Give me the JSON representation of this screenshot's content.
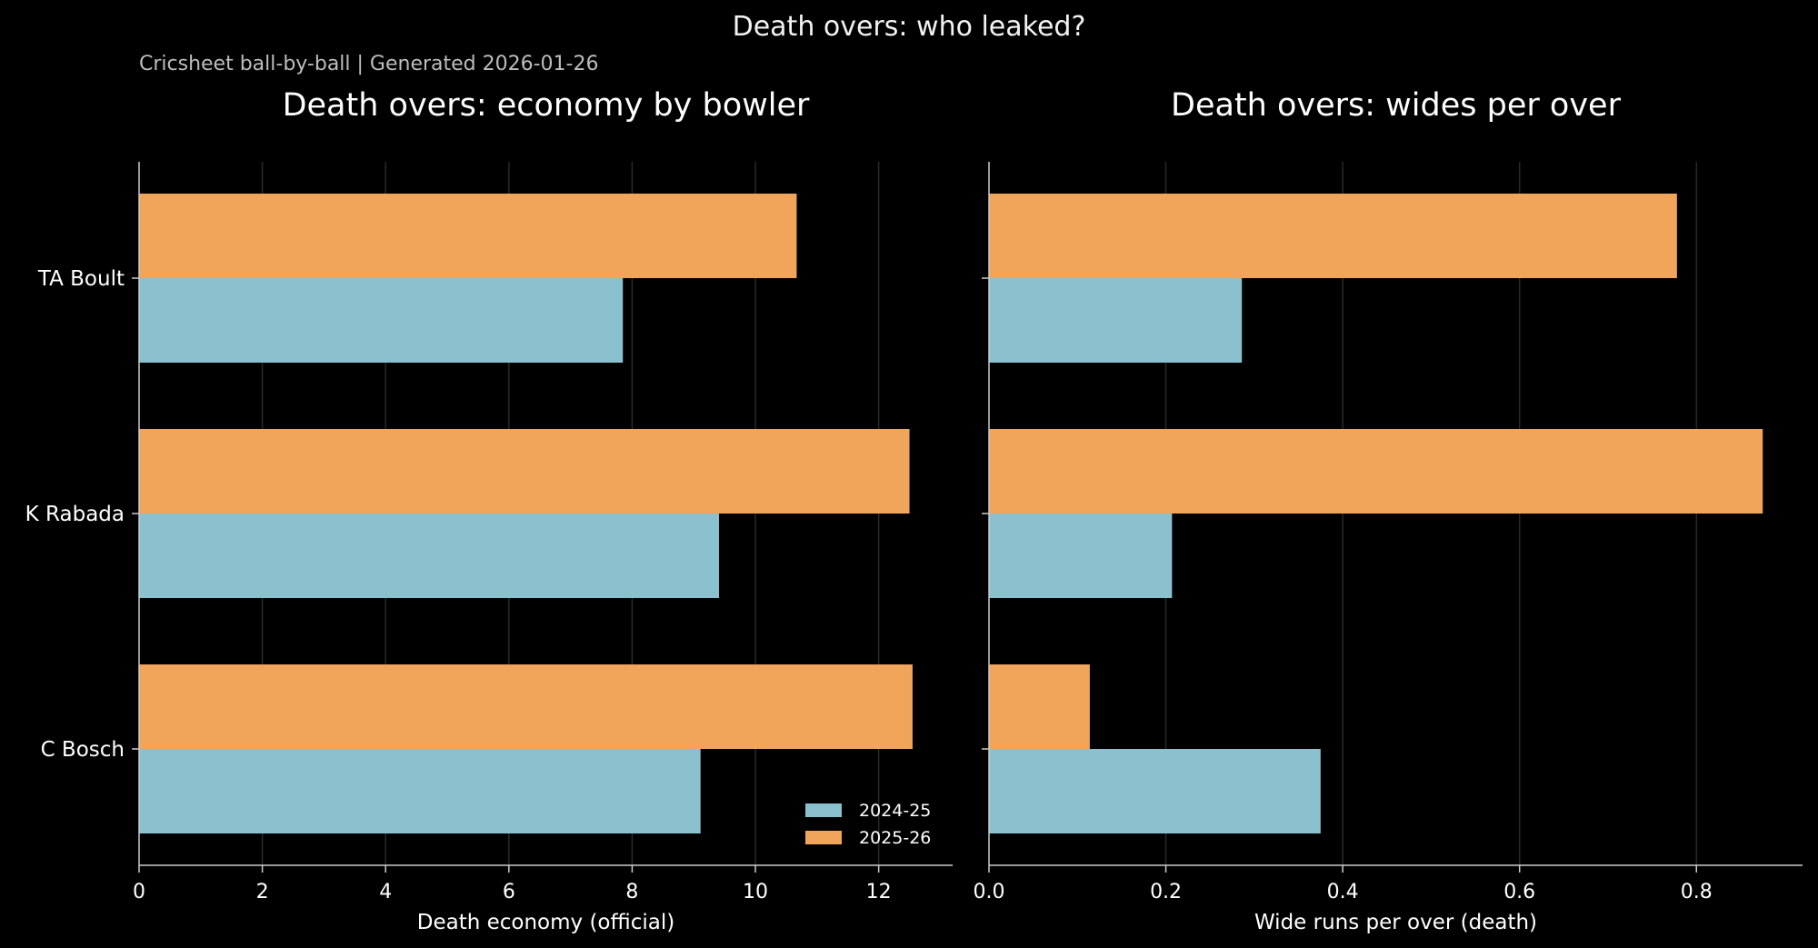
{
  "figure": {
    "title": "Death overs: who leaked?",
    "subtitle": "Cricsheet ball-by-ball | Generated 2026-01-26"
  },
  "colors": {
    "background": "#000000",
    "series_2024": "#8bc0cf",
    "series_2025": "#f0a55b",
    "axis": "#cccccc",
    "grid": "#2a2a2a",
    "text": "#ffffff"
  },
  "chart_data": [
    {
      "type": "bar",
      "orientation": "horizontal",
      "title": "Death overs: economy by bowler",
      "xlabel": "Death economy (official)",
      "ylabel": "",
      "categories": [
        "TA Boult",
        "K Rabada",
        "C Bosch"
      ],
      "series": [
        {
          "name": "2024-25",
          "values": [
            7.85,
            9.41,
            9.11
          ]
        },
        {
          "name": "2025-26",
          "values": [
            10.67,
            12.5,
            12.55
          ]
        }
      ],
      "xlim": [
        0,
        13.2
      ],
      "xticks": [
        0,
        2,
        4,
        6,
        8,
        10,
        12
      ],
      "xtick_labels": [
        "0",
        "2",
        "4",
        "6",
        "8",
        "10",
        "12"
      ],
      "grid": true,
      "legend": {
        "position": "bottom-right",
        "entries": [
          "2024-25",
          "2025-26"
        ]
      }
    },
    {
      "type": "bar",
      "orientation": "horizontal",
      "title": "Death overs: wides per over",
      "xlabel": "Wide runs per over (death)",
      "ylabel": "",
      "categories": [
        "TA Boult",
        "K Rabada",
        "C Bosch"
      ],
      "series": [
        {
          "name": "2024-25",
          "values": [
            0.286,
            0.207,
            0.375
          ]
        },
        {
          "name": "2025-26",
          "values": [
            0.778,
            0.875,
            0.114
          ]
        }
      ],
      "xlim": [
        0,
        0.92
      ],
      "xticks": [
        0.0,
        0.2,
        0.4,
        0.6,
        0.8
      ],
      "xtick_labels": [
        "0.0",
        "0.2",
        "0.4",
        "0.6",
        "0.8"
      ],
      "grid": true
    }
  ]
}
